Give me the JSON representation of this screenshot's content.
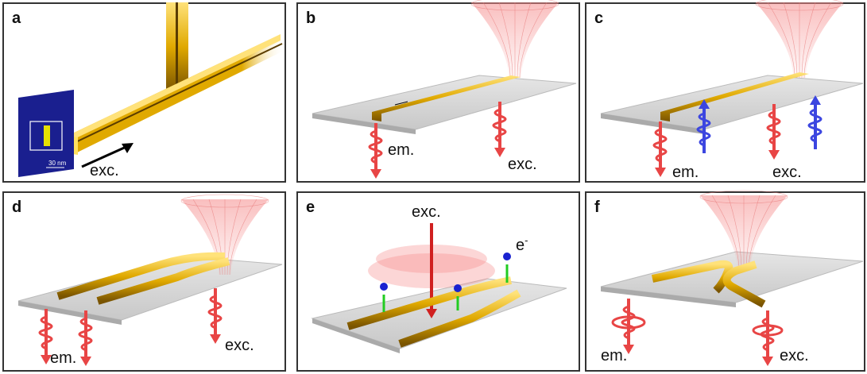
{
  "panels": [
    {
      "label": "a",
      "texts": [
        "exc.",
        "30 nm"
      ]
    },
    {
      "label": "b",
      "texts": [
        "em.",
        "exc."
      ]
    },
    {
      "label": "c",
      "texts": [
        "em.",
        "exc."
      ]
    },
    {
      "label": "d",
      "texts": [
        "em.",
        "exc."
      ]
    },
    {
      "label": "e",
      "texts": [
        "exc."
      ],
      "electron": {
        "symbol": "e",
        "charge": "-"
      }
    },
    {
      "label": "f",
      "texts": [
        "em.",
        "exc."
      ]
    }
  ]
}
